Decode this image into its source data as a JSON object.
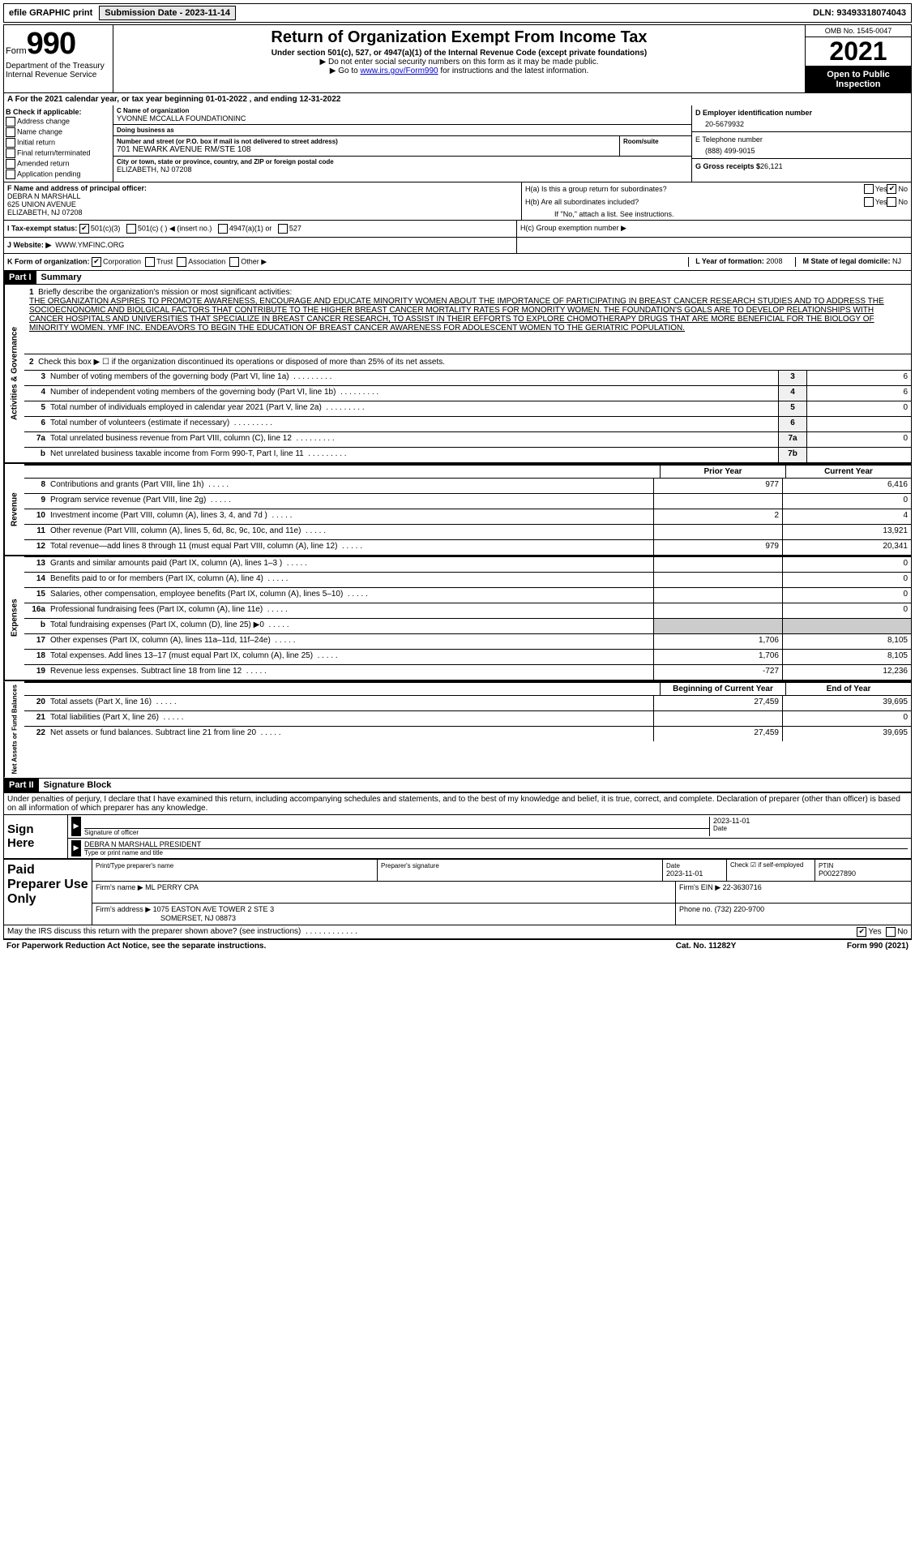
{
  "topbar": {
    "efile": "efile GRAPHIC print",
    "submission_label": "Submission Date - 2023-11-14",
    "dln_label": "DLN: 93493318074043"
  },
  "header": {
    "form_prefix": "Form",
    "form_number": "990",
    "dept": "Department of the Treasury",
    "irs": "Internal Revenue Service",
    "title": "Return of Organization Exempt From Income Tax",
    "subtitle": "Under section 501(c), 527, or 4947(a)(1) of the Internal Revenue Code (except private foundations)",
    "warn1": "▶ Do not enter social security numbers on this form as it may be made public.",
    "warn2_pre": "▶ Go to ",
    "warn2_link": "www.irs.gov/Form990",
    "warn2_post": " for instructions and the latest information.",
    "omb": "OMB No. 1545-0047",
    "year": "2021",
    "inspection": "Open to Public Inspection"
  },
  "period": {
    "text_pre": "For the 2021 calendar year, or tax year beginning ",
    "begin": "01-01-2022",
    "mid": " , and ending ",
    "end": "12-31-2022"
  },
  "boxb": {
    "label": "B Check if applicable:",
    "opts": [
      "Address change",
      "Name change",
      "Initial return",
      "Final return/terminated",
      "Amended return",
      "Application pending"
    ]
  },
  "boxc": {
    "name_label": "C Name of organization",
    "name": "YVONNE MCCALLA FOUNDATIONINC",
    "dba_label": "Doing business as",
    "dba": "",
    "street_label": "Number and street (or P.O. box if mail is not delivered to street address)",
    "street": "701 NEWARK AVENUE RM/STE 108",
    "suite_label": "Room/suite",
    "city_label": "City or town, state or province, country, and ZIP or foreign postal code",
    "city": "ELIZABETH, NJ  07208"
  },
  "boxd": {
    "ein_label": "D Employer identification number",
    "ein": "20-5679932",
    "phone_label": "E Telephone number",
    "phone": "(888) 499-9015",
    "gross_label": "G Gross receipts $",
    "gross": "26,121"
  },
  "boxf": {
    "label": "F Name and address of principal officer:",
    "name": "DEBRA N MARSHALL",
    "addr1": "625 UNION AVENUE",
    "addr2": "ELIZABETH, NJ  07208"
  },
  "boxh": {
    "ha": "H(a)  Is this a group return for subordinates?",
    "hb": "H(b)  Are all subordinates included?",
    "hb_note": "If \"No,\" attach a list. See instructions.",
    "hc": "H(c)  Group exemption number ▶"
  },
  "status": {
    "label": "I  Tax-exempt status:",
    "opts": [
      "501(c)(3)",
      "501(c) (  ) ◀ (insert no.)",
      "4947(a)(1) or",
      "527"
    ]
  },
  "website": {
    "label": "J  Website: ▶",
    "value": "WWW.YMFINC.ORG"
  },
  "korg": {
    "k": "K Form of organization:",
    "opts": [
      "Corporation",
      "Trust",
      "Association",
      "Other ▶"
    ],
    "l_label": "L Year of formation:",
    "l_val": "2008",
    "m_label": "M State of legal domicile:",
    "m_val": "NJ"
  },
  "part1": {
    "header": "Part I",
    "title": "Summary",
    "side1": "Activities & Governance",
    "side2": "Revenue",
    "side3": "Expenses",
    "side4": "Net Assets or Fund Balances",
    "line1_label": "Briefly describe the organization's mission or most significant activities:",
    "line1_text": "THE ORGANIZATION ASPIRES TO PROMOTE AWARENESS, ENCOURAGE AND EDUCATE MINORITY WOMEN ABOUT THE IMPORTANCE OF PARTICIPATING IN BREAST CANCER RESEARCH STUDIES AND TO ADDRESS THE SOCIOECNONOMIC AND BIOLGICAL FACTORS THAT CONTRIBUTE TO THE HIGHER BREAST CANCER MORTALITY RATES FOR MONORITY WOMEN. THE FOUNDATION'S GOALS ARE TO DEVELOP RELATIONSHIPS WITH CANCER HOSPITALS AND UNIVERSITIES THAT SPECIALIZE IN BREAST CANCER RESEARCH, TO ASSIST IN THEIR EFFORTS TO EXPLORE CHOMOTHERAPY DRUGS THAT ARE MORE BENEFICIAL FOR THE BIOLOGY OF MINORITY WOMEN. YMF INC. ENDEAVORS TO BEGIN THE EDUCATION OF BREAST CANCER AWARENESS FOR ADOLESCENT WOMEN TO THE GERIATRIC POPULATION.",
    "line2": "Check this box ▶ ☐ if the organization discontinued its operations or disposed of more than 25% of its net assets.",
    "lines_gov": [
      {
        "n": "3",
        "d": "Number of voting members of the governing body (Part VI, line 1a)",
        "box": "3",
        "v": "6"
      },
      {
        "n": "4",
        "d": "Number of independent voting members of the governing body (Part VI, line 1b)",
        "box": "4",
        "v": "6"
      },
      {
        "n": "5",
        "d": "Total number of individuals employed in calendar year 2021 (Part V, line 2a)",
        "box": "5",
        "v": "0"
      },
      {
        "n": "6",
        "d": "Total number of volunteers (estimate if necessary)",
        "box": "6",
        "v": ""
      },
      {
        "n": "7a",
        "d": "Total unrelated business revenue from Part VIII, column (C), line 12",
        "box": "7a",
        "v": "0"
      },
      {
        "n": "b",
        "d": "Net unrelated business taxable income from Form 990-T, Part I, line 11",
        "box": "7b",
        "v": ""
      }
    ],
    "col_prior": "Prior Year",
    "col_current": "Current Year",
    "lines_rev": [
      {
        "n": "8",
        "d": "Contributions and grants (Part VIII, line 1h)",
        "p": "977",
        "c": "6,416"
      },
      {
        "n": "9",
        "d": "Program service revenue (Part VIII, line 2g)",
        "p": "",
        "c": "0"
      },
      {
        "n": "10",
        "d": "Investment income (Part VIII, column (A), lines 3, 4, and 7d )",
        "p": "2",
        "c": "4"
      },
      {
        "n": "11",
        "d": "Other revenue (Part VIII, column (A), lines 5, 6d, 8c, 9c, 10c, and 11e)",
        "p": "",
        "c": "13,921"
      },
      {
        "n": "12",
        "d": "Total revenue—add lines 8 through 11 (must equal Part VIII, column (A), line 12)",
        "p": "979",
        "c": "20,341"
      }
    ],
    "lines_exp": [
      {
        "n": "13",
        "d": "Grants and similar amounts paid (Part IX, column (A), lines 1–3 )",
        "p": "",
        "c": "0"
      },
      {
        "n": "14",
        "d": "Benefits paid to or for members (Part IX, column (A), line 4)",
        "p": "",
        "c": "0"
      },
      {
        "n": "15",
        "d": "Salaries, other compensation, employee benefits (Part IX, column (A), lines 5–10)",
        "p": "",
        "c": "0"
      },
      {
        "n": "16a",
        "d": "Professional fundraising fees (Part IX, column (A), line 11e)",
        "p": "",
        "c": "0"
      },
      {
        "n": "b",
        "d": "Total fundraising expenses (Part IX, column (D), line 25) ▶0",
        "p": "SHADED",
        "c": "SHADED"
      },
      {
        "n": "17",
        "d": "Other expenses (Part IX, column (A), lines 11a–11d, 11f–24e)",
        "p": "1,706",
        "c": "8,105"
      },
      {
        "n": "18",
        "d": "Total expenses. Add lines 13–17 (must equal Part IX, column (A), line 25)",
        "p": "1,706",
        "c": "8,105"
      },
      {
        "n": "19",
        "d": "Revenue less expenses. Subtract line 18 from line 12",
        "p": "-727",
        "c": "12,236"
      }
    ],
    "col_begin": "Beginning of Current Year",
    "col_end": "End of Year",
    "lines_net": [
      {
        "n": "20",
        "d": "Total assets (Part X, line 16)",
        "p": "27,459",
        "c": "39,695"
      },
      {
        "n": "21",
        "d": "Total liabilities (Part X, line 26)",
        "p": "",
        "c": "0"
      },
      {
        "n": "22",
        "d": "Net assets or fund balances. Subtract line 21 from line 20",
        "p": "27,459",
        "c": "39,695"
      }
    ]
  },
  "part2": {
    "header": "Part II",
    "title": "Signature Block",
    "penalty": "Under penalties of perjury, I declare that I have examined this return, including accompanying schedules and statements, and to the best of my knowledge and belief, it is true, correct, and complete. Declaration of preparer (other than officer) is based on all information of which preparer has any knowledge.",
    "sign_here": "Sign Here",
    "sig_officer": "Signature of officer",
    "sig_date_label": "Date",
    "sig_date": "2023-11-01",
    "officer_name": "DEBRA N MARSHALL  PRESIDENT",
    "officer_type": "Type or print name and title",
    "paid": "Paid Preparer Use Only",
    "prep_name_label": "Print/Type preparer's name",
    "prep_sig_label": "Preparer's signature",
    "prep_date_label": "Date",
    "prep_date": "2023-11-01",
    "prep_self": "Check ☑ if self-employed",
    "ptin_label": "PTIN",
    "ptin": "P00227890",
    "firm_name_label": "Firm's name    ▶",
    "firm_name": "ML PERRY CPA",
    "firm_ein_label": "Firm's EIN ▶",
    "firm_ein": "22-3630716",
    "firm_addr_label": "Firm's address ▶",
    "firm_addr": "1075 EASTON AVE TOWER 2 STE 3",
    "firm_city": "SOMERSET, NJ  08873",
    "firm_phone_label": "Phone no.",
    "firm_phone": "(732) 220-9700",
    "discuss": "May the IRS discuss this return with the preparer shown above? (see instructions)"
  },
  "footer": {
    "paperwork": "For Paperwork Reduction Act Notice, see the separate instructions.",
    "cat": "Cat. No. 11282Y",
    "form": "Form 990 (2021)"
  }
}
